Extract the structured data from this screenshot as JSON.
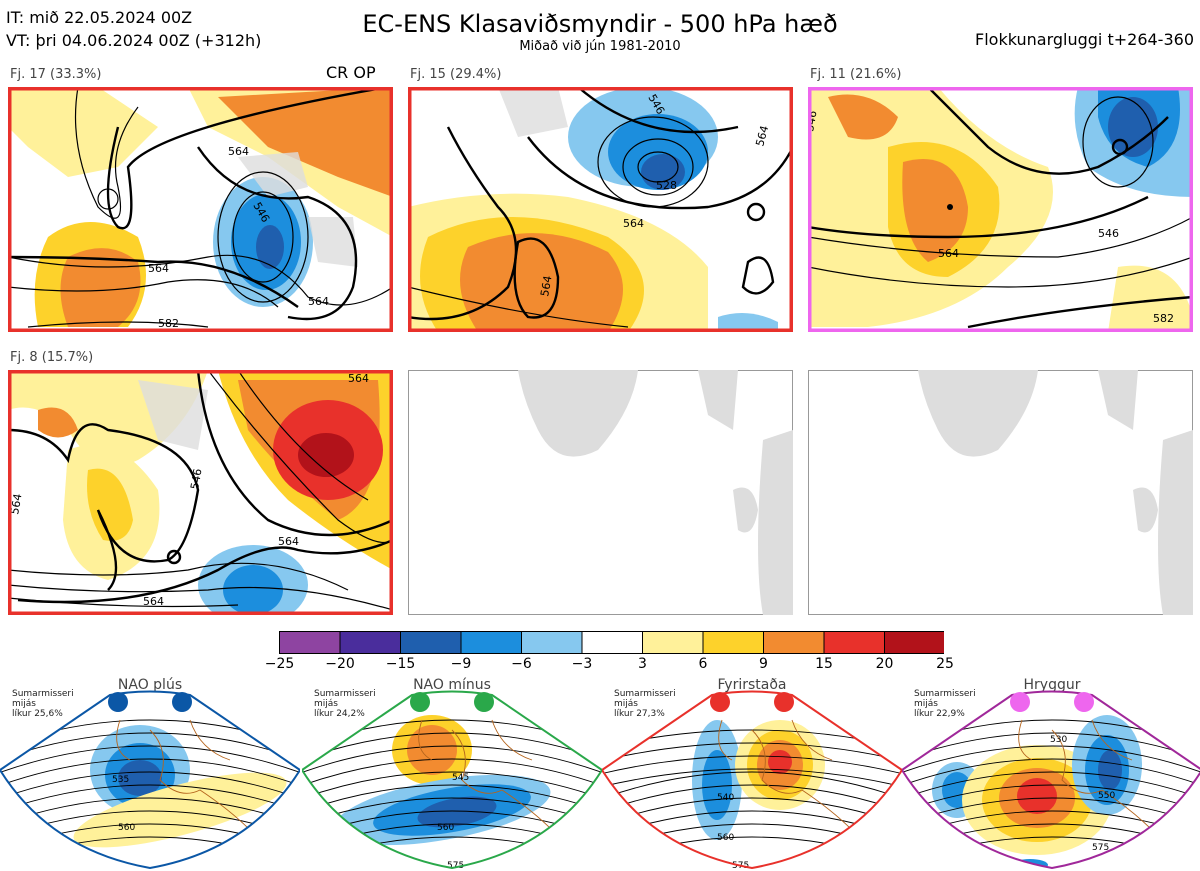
{
  "header": {
    "it": "IT: mið 22.05.2024 00Z",
    "vt": "VT: þri 04.06.2024 00Z  (+312h)",
    "title": "EC-ENS Klasaviðsmyndir - 500 hPa hæð",
    "subtitle": "Miðað við jún 1981-2010",
    "window": "Flokkunargluggi t+264-360"
  },
  "clusters": [
    {
      "label": "Fj. 17 (33.3%)",
      "tag": "CR OP",
      "border": "#e8312b",
      "contours": [
        "546",
        "564",
        "564",
        "564",
        "582"
      ]
    },
    {
      "label": "Fj. 15 (29.4%)",
      "tag": "",
      "border": "#e8312b",
      "contours": [
        "546",
        "528",
        "564",
        "564",
        "564",
        "564",
        "546"
      ]
    },
    {
      "label": "Fj. 11 (21.6%)",
      "tag": "",
      "border": "#ee66ee",
      "contours": [
        "546",
        "546",
        "564",
        "546",
        "582"
      ]
    },
    {
      "label": "Fj. 8 (15.7%)",
      "tag": "",
      "border": "#e8312b",
      "contours": [
        "564",
        "546",
        "564",
        "546",
        "564",
        "564",
        "564"
      ]
    }
  ],
  "chart_data": {
    "type": "heatmap",
    "title": "EC-ENS Klasaviðsmyndir - 500 hPa hæð",
    "colorbar": {
      "ticks": [
        "−25",
        "−20",
        "−15",
        "−9",
        "−6",
        "−3",
        "3",
        "6",
        "9",
        "15",
        "20",
        "25"
      ],
      "colors": [
        "#8e44a1",
        "#4a2d9c",
        "#1f5fae",
        "#1c8edd",
        "#86c8ef",
        "#ffffff",
        "#fff19a",
        "#fdd22b",
        "#f28b30",
        "#e8312b",
        "#b2121a"
      ]
    },
    "clusters": [
      {
        "name": "Fj. 17",
        "probability_pct": 33.3
      },
      {
        "name": "Fj. 15",
        "probability_pct": 29.4
      },
      {
        "name": "Fj. 11",
        "probability_pct": 21.6
      },
      {
        "name": "Fj. 8",
        "probability_pct": 15.7
      }
    ],
    "regimes": [
      {
        "name": "NAO plús",
        "info": [
          "Sumarmisseri",
          "mijás",
          "líkur 25,6%"
        ],
        "color": "#0b57a6",
        "contours": [
          "535",
          "560"
        ]
      },
      {
        "name": "NAO mínus",
        "info": [
          "Sumarmisseri",
          "mijás",
          "líkur 24,2%"
        ],
        "color": "#2aa84a",
        "contours": [
          "545",
          "560",
          "575"
        ]
      },
      {
        "name": "Fyrirstaða",
        "info": [
          "Sumarmisseri",
          "mijás",
          "líkur 27,3%"
        ],
        "color": "#e8312b",
        "contours": [
          "540",
          "560",
          "575"
        ]
      },
      {
        "name": "Hryggur",
        "info": [
          "Sumarmisseri",
          "mijás",
          "líkur 22,9%"
        ],
        "color": "#a0289a",
        "dot": "#ee66ee",
        "contours": [
          "530",
          "550",
          "575"
        ]
      }
    ]
  }
}
